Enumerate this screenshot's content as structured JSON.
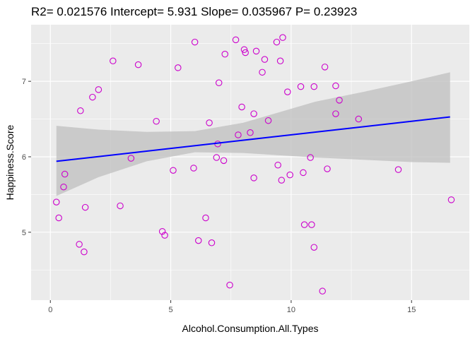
{
  "chart_data": {
    "type": "scatter",
    "title": "R2= 0.021576 Intercept= 5.931 Slope= 0.035967 P= 0.23923",
    "xlabel": "Alcohol.Consumption.All.Types",
    "ylabel": "Happiness.Score",
    "xlim": [
      -0.8,
      17.4
    ],
    "ylim": [
      4.1,
      7.75
    ],
    "xticks": [
      0,
      5,
      10,
      15
    ],
    "yticks": [
      5,
      6,
      7
    ],
    "grid": true,
    "legend": "none",
    "colors": {
      "panel_background": "#ebebeb",
      "grid": "#ffffff",
      "points": "#cc00cc",
      "fit_line": "#0000ff",
      "confidence_band": "#bfbfbf"
    },
    "fit": {
      "intercept": 5.931,
      "slope": 0.035967,
      "x_range": [
        0.25,
        16.6
      ]
    },
    "confidence_band": {
      "x": [
        0.25,
        2.0,
        4.0,
        6.0,
        8.0,
        9.5,
        11.0,
        13.0,
        15.0,
        16.6
      ],
      "lower": [
        5.48,
        5.73,
        5.94,
        6.06,
        6.05,
        6.02,
        5.99,
        5.96,
        5.93,
        5.92
      ],
      "upper": [
        6.41,
        6.36,
        6.33,
        6.34,
        6.45,
        6.59,
        6.73,
        6.86,
        7.0,
        7.12
      ]
    },
    "points": [
      {
        "x": 0.25,
        "y": 5.4
      },
      {
        "x": 0.35,
        "y": 5.19
      },
      {
        "x": 0.55,
        "y": 5.6
      },
      {
        "x": 0.6,
        "y": 5.77
      },
      {
        "x": 1.2,
        "y": 4.84
      },
      {
        "x": 1.25,
        "y": 6.61
      },
      {
        "x": 1.4,
        "y": 4.74
      },
      {
        "x": 1.45,
        "y": 5.33
      },
      {
        "x": 1.75,
        "y": 6.79
      },
      {
        "x": 2.0,
        "y": 6.89
      },
      {
        "x": 2.6,
        "y": 7.27
      },
      {
        "x": 2.9,
        "y": 5.35
      },
      {
        "x": 3.35,
        "y": 5.98
      },
      {
        "x": 3.65,
        "y": 7.22
      },
      {
        "x": 4.4,
        "y": 6.47
      },
      {
        "x": 4.65,
        "y": 5.01
      },
      {
        "x": 4.75,
        "y": 4.96
      },
      {
        "x": 5.1,
        "y": 5.82
      },
      {
        "x": 5.3,
        "y": 7.18
      },
      {
        "x": 5.95,
        "y": 5.85
      },
      {
        "x": 6.0,
        "y": 7.52
      },
      {
        "x": 6.15,
        "y": 4.89
      },
      {
        "x": 6.45,
        "y": 5.19
      },
      {
        "x": 6.6,
        "y": 6.45
      },
      {
        "x": 6.7,
        "y": 4.86
      },
      {
        "x": 6.9,
        "y": 5.99
      },
      {
        "x": 6.95,
        "y": 6.17
      },
      {
        "x": 7.0,
        "y": 6.98
      },
      {
        "x": 7.2,
        "y": 5.95
      },
      {
        "x": 7.25,
        "y": 7.36
      },
      {
        "x": 7.45,
        "y": 4.3
      },
      {
        "x": 7.7,
        "y": 7.55
      },
      {
        "x": 7.8,
        "y": 6.29
      },
      {
        "x": 7.95,
        "y": 6.66
      },
      {
        "x": 8.05,
        "y": 7.42
      },
      {
        "x": 8.1,
        "y": 7.38
      },
      {
        "x": 8.3,
        "y": 6.32
      },
      {
        "x": 8.45,
        "y": 5.72
      },
      {
        "x": 8.45,
        "y": 6.57
      },
      {
        "x": 8.55,
        "y": 7.4
      },
      {
        "x": 8.8,
        "y": 7.12
      },
      {
        "x": 8.9,
        "y": 7.29
      },
      {
        "x": 9.05,
        "y": 6.48
      },
      {
        "x": 9.4,
        "y": 7.52
      },
      {
        "x": 9.45,
        "y": 5.89
      },
      {
        "x": 9.55,
        "y": 7.27
      },
      {
        "x": 9.6,
        "y": 5.69
      },
      {
        "x": 9.65,
        "y": 7.58
      },
      {
        "x": 9.85,
        "y": 6.86
      },
      {
        "x": 9.95,
        "y": 5.76
      },
      {
        "x": 10.4,
        "y": 6.93
      },
      {
        "x": 10.5,
        "y": 5.79
      },
      {
        "x": 10.55,
        "y": 5.1
      },
      {
        "x": 10.8,
        "y": 5.99
      },
      {
        "x": 10.85,
        "y": 5.1
      },
      {
        "x": 10.95,
        "y": 6.93
      },
      {
        "x": 10.95,
        "y": 4.8
      },
      {
        "x": 11.3,
        "y": 4.22
      },
      {
        "x": 11.4,
        "y": 7.19
      },
      {
        "x": 11.5,
        "y": 5.84
      },
      {
        "x": 11.85,
        "y": 6.57
      },
      {
        "x": 11.85,
        "y": 6.94
      },
      {
        "x": 12.0,
        "y": 6.75
      },
      {
        "x": 12.8,
        "y": 6.5
      },
      {
        "x": 14.45,
        "y": 5.83
      },
      {
        "x": 16.65,
        "y": 5.43
      }
    ]
  }
}
